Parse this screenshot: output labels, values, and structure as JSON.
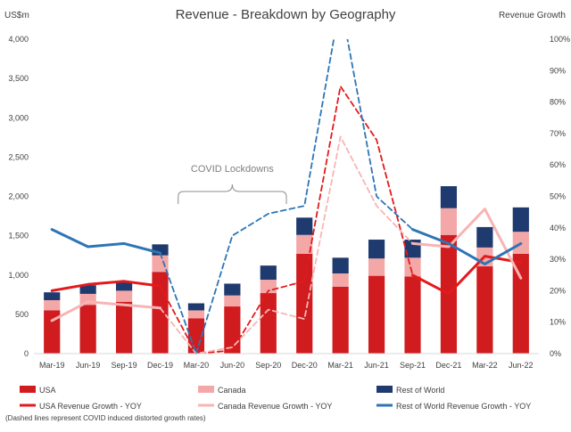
{
  "chart_data": {
    "type": "bar",
    "title": "Revenue - Breakdown by Geography",
    "y_left_label": "US$m",
    "y_right_label": "Revenue Growth",
    "categories": [
      "Mar-19",
      "Jun-19",
      "Sep-19",
      "Dec-19",
      "Mar-20",
      "Jun-20",
      "Sep-20",
      "Dec-20",
      "Mar-21",
      "Jun-21",
      "Sep-21",
      "Dec-21",
      "Mar-22",
      "Jun-22"
    ],
    "y_left_ticks": [
      "0",
      "500",
      "1,000",
      "1,500",
      "2,000",
      "2,500",
      "3,000",
      "3,500",
      "4,000"
    ],
    "y_right_ticks": [
      "0%",
      "10%",
      "20%",
      "30%",
      "40%",
      "50%",
      "60%",
      "70%",
      "80%",
      "90%",
      "100%"
    ],
    "ylim_left": [
      0,
      4000
    ],
    "ylim_right": [
      0,
      100
    ],
    "stacked": true,
    "grid": false,
    "bar_series": [
      {
        "name": "USA",
        "color": "#d01c1f",
        "values": [
          550,
          620,
          660,
          1040,
          450,
          600,
          770,
          1270,
          850,
          990,
          980,
          1510,
          1110,
          1270
        ]
      },
      {
        "name": "Canada",
        "color": "#f4a7a7",
        "values": [
          130,
          140,
          140,
          210,
          100,
          140,
          170,
          240,
          170,
          220,
          240,
          340,
          240,
          280
        ]
      },
      {
        "name": "Rest of World",
        "color": "#1f3a6e",
        "values": [
          100,
          110,
          110,
          140,
          90,
          150,
          180,
          220,
          200,
          240,
          230,
          280,
          260,
          310
        ]
      }
    ],
    "line_series": [
      {
        "name": "USA Revenue Growth - YOY",
        "color": "#e31a1c",
        "axis": "right",
        "values": [
          20,
          22,
          23,
          21.5,
          0,
          1,
          20,
          23,
          85,
          68,
          25,
          19,
          31,
          29
        ]
      },
      {
        "name": "Canada Revenue Growth - YOY",
        "color": "#f8b4b4",
        "axis": "right",
        "values": [
          10.5,
          16.5,
          15.5,
          14.5,
          0,
          2,
          14,
          11,
          69,
          47,
          35,
          34,
          46,
          24
        ]
      },
      {
        "name": "Rest of World Revenue Growth - YOY",
        "color": "#2e75b6",
        "axis": "right",
        "values": [
          39.5,
          34,
          35,
          32,
          0,
          37.5,
          44.5,
          47,
          112,
          50,
          39.5,
          35,
          28.5,
          35
        ]
      }
    ],
    "line_styles": {
      "solid_ranges": [
        [
          0,
          3
        ],
        [
          10,
          13
        ]
      ],
      "dashed_ranges": [
        [
          3,
          10
        ]
      ]
    },
    "annotation": {
      "text": "COVID Lockdowns",
      "from_category": "Dec-19",
      "to_category": "Sep-20"
    },
    "note": "(Dashed lines represent COVID induced distorted growth rates)",
    "legend": {
      "placement": "bottom",
      "items": [
        {
          "label": "USA",
          "type": "bar",
          "color": "#d01c1f"
        },
        {
          "label": "Canada",
          "type": "bar",
          "color": "#f4a7a7"
        },
        {
          "label": "Rest of World",
          "type": "bar",
          "color": "#1f3a6e"
        },
        {
          "label": "USA Revenue Growth - YOY",
          "type": "line",
          "color": "#e31a1c"
        },
        {
          "label": "Canada Revenue Growth - YOY",
          "type": "line",
          "color": "#f8b4b4"
        },
        {
          "label": "Rest of World Revenue Growth - YOY",
          "type": "line",
          "color": "#2e75b6"
        }
      ]
    }
  }
}
